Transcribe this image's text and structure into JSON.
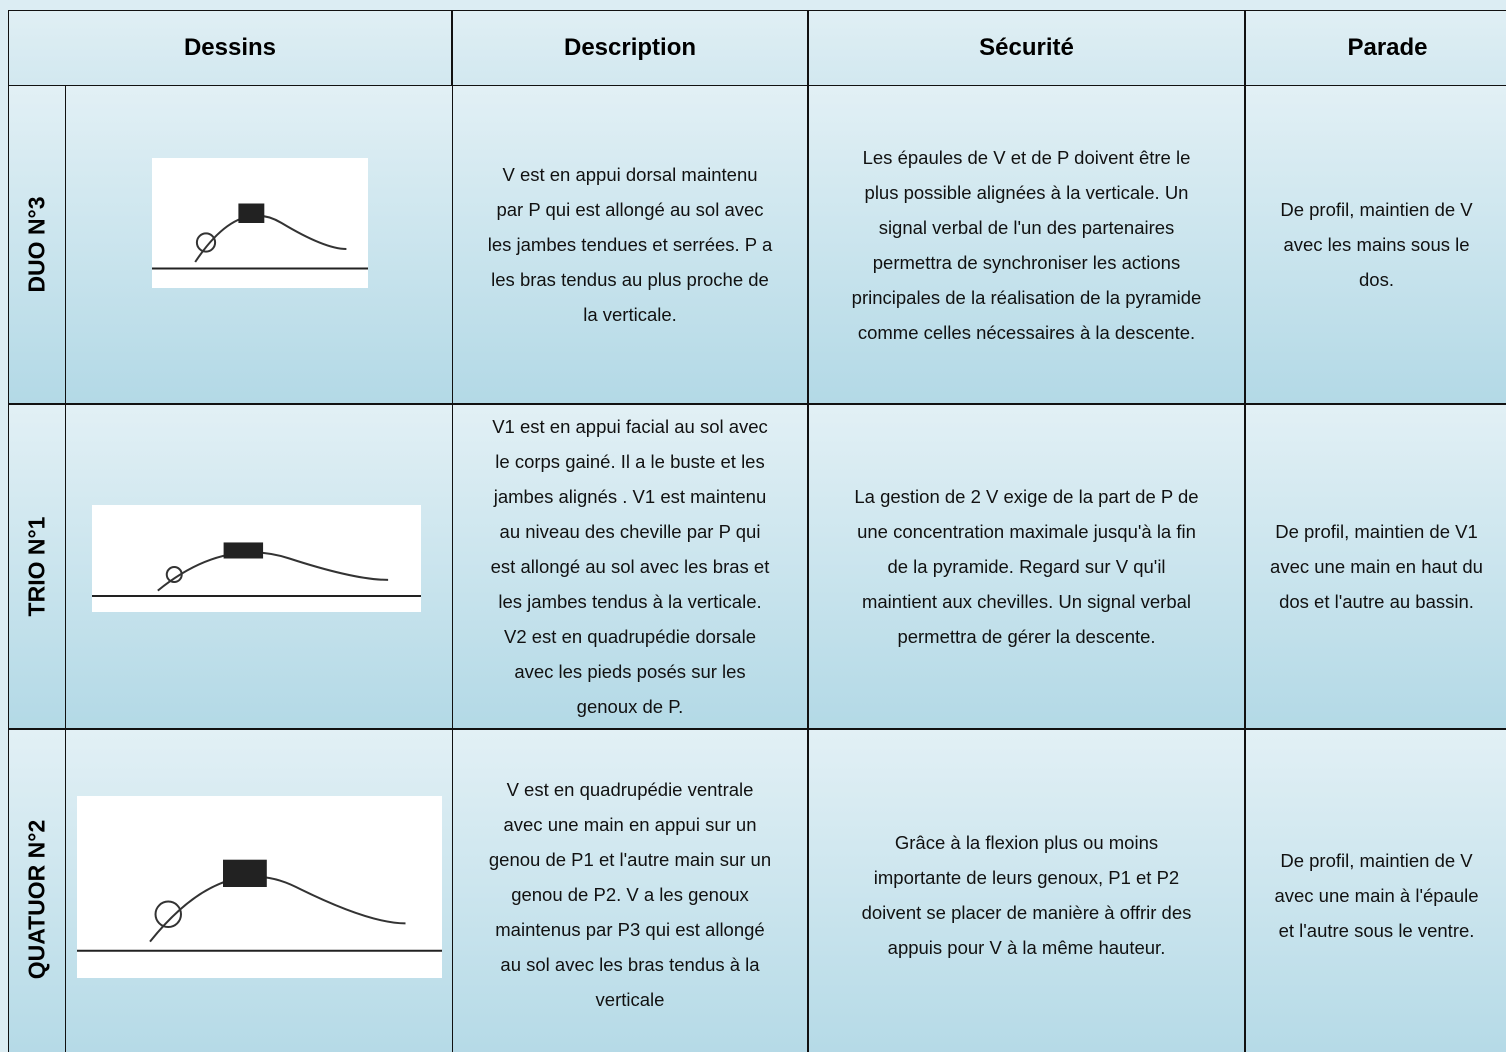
{
  "table": {
    "header": [
      "Dessins",
      "Description",
      "Sécurité",
      "Parade"
    ],
    "rows": [
      {
        "label": "DUO N°3",
        "description": [
          "V est en appui dorsal maintenu",
          "par P qui est allongé au sol avec",
          "les jambes tendues et serrées. P a",
          "les bras tendus au plus proche de",
          "la verticale."
        ],
        "securite": [
          "Les épaules de V et de P doivent être le",
          "plus possible alignées à la verticale. Un",
          "signal verbal de l'un des partenaires",
          "permettra de synchroniser les actions",
          "principales de la réalisation de la pyramide",
          "comme celles nécessaires à la descente."
        ],
        "parade": [
          "De profil, maintien de V",
          "avec les mains sous le",
          "dos."
        ]
      },
      {
        "label": "TRIO N°1",
        "description": [
          "V1 est en appui facial au sol avec",
          "le corps gainé. Il a le buste et les",
          "jambes alignés . V1 est maintenu",
          "au niveau des cheville par P qui",
          "est allongé au sol avec les bras et",
          "les jambes tendus à la verticale.",
          "V2 est en quadrupédie dorsale",
          "avec les pieds posés sur les",
          "genoux de P."
        ],
        "securite": [
          "La gestion de 2 V exige de la part de P de",
          "une concentration maximale jusqu'à la fin",
          "de la pyramide. Regard sur V qu'il",
          "maintient aux chevilles. Un signal verbal",
          "permettra de gérer la descente."
        ],
        "parade": [
          "De profil, maintien de V1",
          "avec une main en haut du",
          "dos et l'autre au bassin."
        ]
      },
      {
        "label": "QUATUOR N°2",
        "description": [
          "V est en quadrupédie ventrale",
          "avec une main en appui sur un",
          "genou de P1 et l'autre main sur un",
          "genou de P2. V a les genoux",
          "maintenus par P3 qui est allongé",
          "au sol avec les bras tendus à la",
          "verticale"
        ],
        "securite": [
          "Grâce à la flexion plus ou moins",
          "importante de leurs genoux, P1 et P2",
          "doivent  se placer de manière à offrir des",
          "appuis pour V  à la même hauteur."
        ],
        "parade": [
          "De profil, maintien de V",
          "avec une main à l'épaule",
          "et l'autre sous le ventre."
        ]
      }
    ]
  }
}
